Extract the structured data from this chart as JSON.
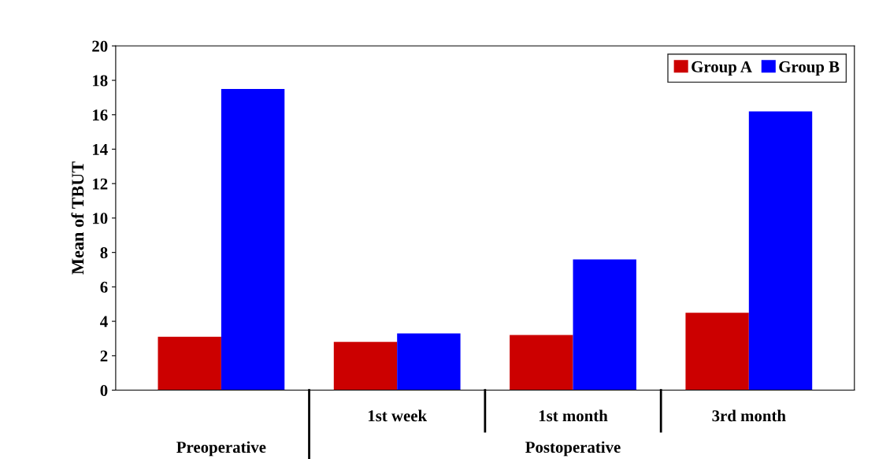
{
  "chart_data": {
    "type": "bar",
    "ylabel": "Mean of TBUT",
    "categories": [
      null,
      "1st week",
      "1st month",
      "3rd month"
    ],
    "series": [
      {
        "name": "Group A",
        "color": "#cc0000",
        "values": [
          3.1,
          2.8,
          3.2,
          4.5
        ]
      },
      {
        "name": "Group B",
        "color": "#0000ff",
        "values": [
          17.5,
          3.3,
          7.6,
          16.2
        ]
      }
    ],
    "ylim": [
      0,
      20
    ],
    "yticks": [
      0,
      2,
      4,
      6,
      8,
      10,
      12,
      14,
      16,
      18,
      20
    ],
    "annotations": [
      "Preoperative",
      "Postoperative"
    ],
    "grid": false,
    "legend": "top right"
  }
}
